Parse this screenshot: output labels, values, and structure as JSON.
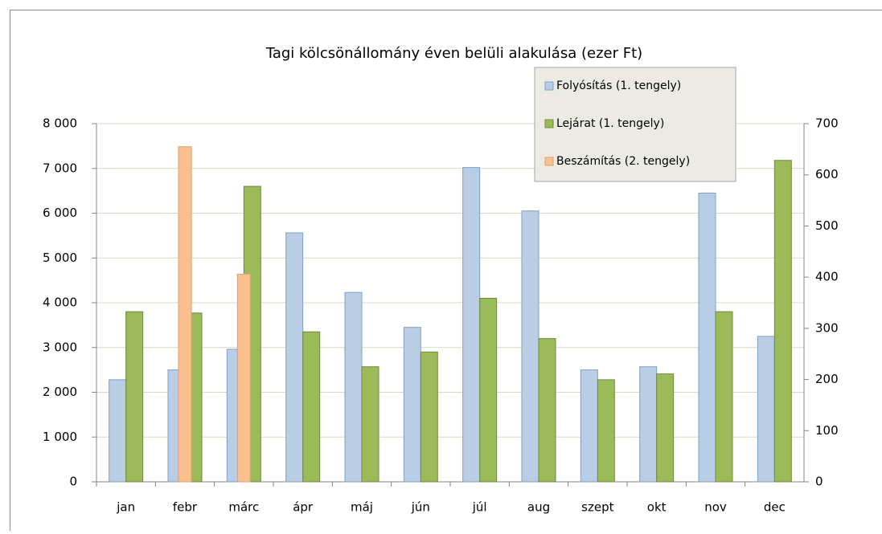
{
  "chart_data": {
    "type": "bar",
    "title": "Tagi kölcsönállomány éven belüli alakulása (ezer Ft)",
    "categories": [
      "jan",
      "febr",
      "márc",
      "ápr",
      "máj",
      "jún",
      "júl",
      "aug",
      "szept",
      "okt",
      "nov",
      "dec"
    ],
    "series": [
      {
        "name": "Folyósítás (1. tengely)",
        "color": "#b9cde5",
        "values": [
          2280,
          2500,
          2960,
          5560,
          4230,
          3450,
          7020,
          6050,
          2500,
          2570,
          6450,
          3250
        ]
      },
      {
        "name": "Lejárat (1. tengely)",
        "color": "#9bbb59",
        "values": [
          3800,
          3770,
          6600,
          3350,
          2570,
          2900,
          4100,
          3200,
          2280,
          2410,
          3800,
          7180
        ]
      },
      {
        "name": "Beszámítás (2. tengely)",
        "color": "#fac090",
        "axis": "y2",
        "values": [
          null,
          655,
          406,
          null,
          null,
          null,
          null,
          null,
          null,
          null,
          null,
          null
        ]
      }
    ],
    "ylim": [
      0,
      8000
    ],
    "yticks": [
      0,
      {
        "value": 1000,
        "label": "1 000"
      },
      {
        "value": 2000,
        "label": "2 000"
      },
      {
        "value": 3000,
        "label": "3 000"
      },
      {
        "value": 4000,
        "label": "4 000"
      },
      {
        "value": 5000,
        "label": "5 000"
      },
      {
        "value": 6000,
        "label": "6 000"
      },
      {
        "value": 7000,
        "label": "7 000"
      },
      {
        "value": 8000,
        "label": "8 000"
      }
    ],
    "y2lim": [
      0,
      700
    ],
    "y2ticks": [
      0,
      100,
      200,
      300,
      400,
      500,
      600,
      700
    ],
    "grid": true,
    "legend": "top-right"
  }
}
